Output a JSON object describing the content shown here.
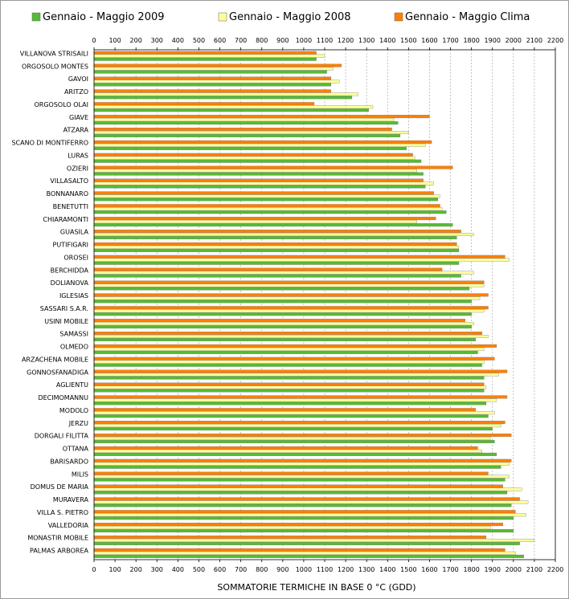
{
  "chart_data": {
    "type": "bar",
    "orientation": "horizontal",
    "title": "",
    "xlabel": "SOMMATORIE TERMICHE IN BASE 0 °C (GDD)",
    "ylabel": "",
    "xlim": [
      0,
      2200
    ],
    "x_ticks": [
      "0",
      "100",
      "200",
      "300",
      "400",
      "500",
      "600",
      "700",
      "800",
      "900",
      "1000",
      "1100",
      "1200",
      "1300",
      "1400",
      "1500",
      "1600",
      "1700",
      "1800",
      "1900",
      "2000",
      "2100",
      "2200"
    ],
    "grid": "vertical dashed",
    "legend_position": "top",
    "categories": [
      "VILLANOVA STRISAILI",
      "ORGOSOLO MONTES",
      "GAVOI",
      "ARITZO",
      "ORGOSOLO OLAI",
      "GIAVE",
      "ATZARA",
      "SCANO DI MONTIFERRO",
      "LURAS",
      "OZIERI",
      "VILLASALTO",
      "BONNANARO",
      "BENETUTTI",
      "CHIARAMONTI",
      "GUASILA",
      "PUTIFIGARI",
      "OROSEI",
      "BERCHIDDA",
      "DOLIANOVA",
      "IGLESIAS",
      "SASSARI S.A.R.",
      "USINI MOBILE",
      "SAMASSI",
      "OLMEDO",
      "ARZACHENA MOBILE",
      "GONNOSFANADIGA",
      "AGLIENTU",
      "DECIMOMANNU",
      "MODOLO",
      "JERZU",
      "DORGALI FILITTA",
      "OTTANA",
      "BARISARDO",
      "MILIS",
      "DOMUS DE MARIA",
      "MURAVERA",
      "VILLA S. PIETRO",
      "VALLEDORIA",
      "MONASTIR MOBILE",
      "PALMAS ARBOREA"
    ],
    "series": [
      {
        "name": "Gennaio - Maggio Clima",
        "color": "#ff7f00",
        "values": [
          1060,
          1180,
          1130,
          1130,
          1050,
          1600,
          1420,
          1610,
          1520,
          1710,
          1570,
          1620,
          1650,
          1630,
          1750,
          1730,
          1960,
          1660,
          1860,
          1880,
          1880,
          1770,
          1850,
          1920,
          1910,
          1970,
          1860,
          1970,
          1820,
          1960,
          1990,
          1830,
          1990,
          1880,
          1950,
          2030,
          2010,
          1950,
          1870,
          1960
        ]
      },
      {
        "name": "Gennaio - Maggio 2008",
        "color": "#ffff99",
        "values": [
          1100,
          1140,
          1170,
          1260,
          1330,
          1430,
          1500,
          1580,
          1530,
          1540,
          1620,
          1650,
          1660,
          1540,
          1810,
          1740,
          1980,
          1810,
          1860,
          1840,
          1860,
          1810,
          1880,
          1860,
          1860,
          1930,
          1870,
          1920,
          1910,
          1940,
          1890,
          1850,
          1980,
          1980,
          2040,
          2070,
          2060,
          1890,
          2100,
          2010
        ]
      },
      {
        "name": "Gennaio - Maggio 2009",
        "color": "#55bb33",
        "values": [
          1060,
          1110,
          1130,
          1230,
          1310,
          1450,
          1460,
          1490,
          1560,
          1570,
          1580,
          1640,
          1680,
          1710,
          1730,
          1740,
          1740,
          1750,
          1790,
          1800,
          1800,
          1800,
          1820,
          1830,
          1850,
          1860,
          1860,
          1870,
          1880,
          1900,
          1910,
          1920,
          1940,
          1960,
          1970,
          1990,
          2000,
          2000,
          2030,
          2050
        ]
      }
    ]
  },
  "legend": {
    "items": [
      {
        "label": "Gennaio - Maggio 2009",
        "color": "#55bb33"
      },
      {
        "label": "Gennaio - Maggio 2008",
        "color": "#ffff99"
      },
      {
        "label": "Gennaio - Maggio Clima",
        "color": "#ff7f00"
      }
    ]
  }
}
